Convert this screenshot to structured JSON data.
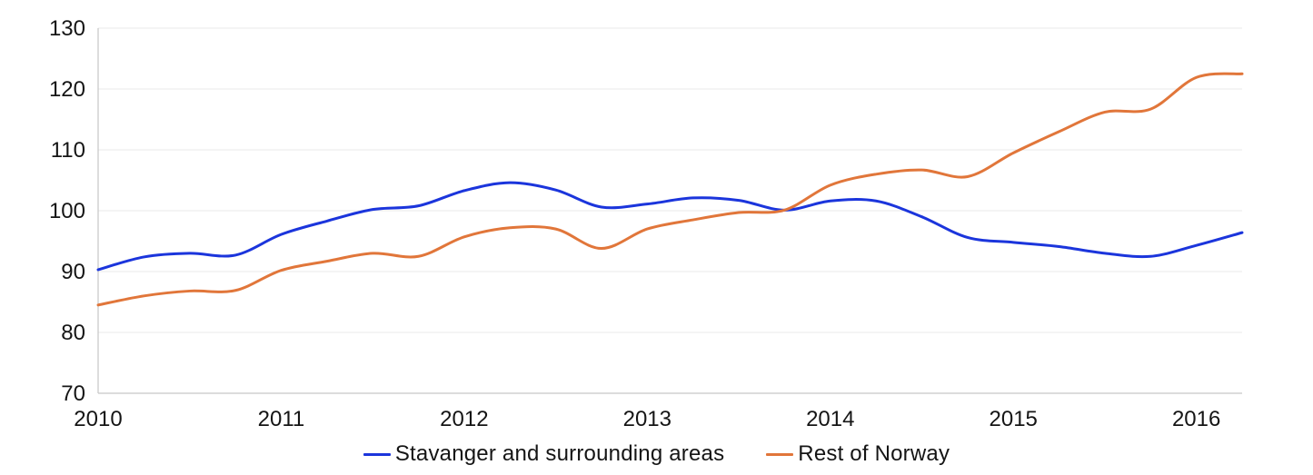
{
  "chart_data": {
    "type": "line",
    "title": "",
    "xlabel": "",
    "ylabel": "",
    "x": [
      2010.0,
      2010.25,
      2010.5,
      2010.75,
      2011.0,
      2011.25,
      2011.5,
      2011.75,
      2012.0,
      2012.25,
      2012.5,
      2012.75,
      2013.0,
      2013.25,
      2013.5,
      2013.75,
      2014.0,
      2014.25,
      2014.5,
      2014.75,
      2015.0,
      2015.25,
      2015.5,
      2015.75,
      2016.0,
      2016.25
    ],
    "series": [
      {
        "name": "Stavanger and surrounding areas",
        "color": "#1b35dc",
        "values": [
          90.3,
          92.4,
          93.0,
          92.7,
          96.1,
          98.3,
          100.2,
          100.8,
          103.3,
          104.6,
          103.4,
          100.6,
          101.1,
          102.1,
          101.7,
          100.1,
          101.6,
          101.6,
          99.0,
          95.6,
          94.8,
          94.1,
          93.0,
          92.5,
          94.3,
          96.4
        ]
      },
      {
        "name": "Rest of Norway",
        "color": "#e1763a",
        "values": [
          84.5,
          86.0,
          86.8,
          86.9,
          90.2,
          91.7,
          93.0,
          92.5,
          95.7,
          97.2,
          97.0,
          93.8,
          97.0,
          98.5,
          99.7,
          100.1,
          104.2,
          106.0,
          106.7,
          105.6,
          109.5,
          113.0,
          116.2,
          116.7,
          121.9,
          122.5
        ]
      }
    ],
    "xlim": [
      2010,
      2016.25
    ],
    "ylim": [
      70,
      130
    ],
    "y_ticks": [
      70,
      80,
      90,
      100,
      110,
      120,
      130
    ],
    "x_ticks": [
      2010,
      2011,
      2012,
      2013,
      2014,
      2015,
      2016
    ],
    "grid": "horizontal",
    "legend_position": "bottom-center"
  },
  "styles": {
    "grid_color": "#e9e9e9",
    "axis_color": "#c6c6c6",
    "text_color": "#151515",
    "background": "#ffffff"
  }
}
